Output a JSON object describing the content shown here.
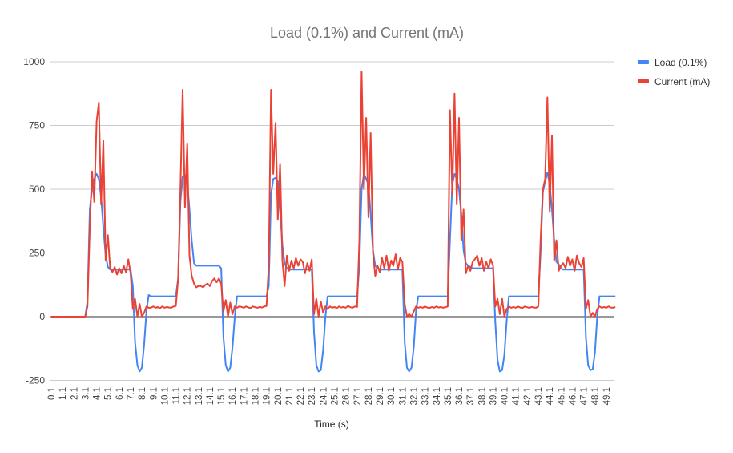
{
  "chart_data": {
    "type": "line",
    "title": "Load (0.1%) and Current (mA)",
    "xlabel": "Time (s)",
    "ylabel": "",
    "ylim": [
      -250,
      1000
    ],
    "yticks": [
      -250,
      0,
      250,
      500,
      750,
      1000
    ],
    "xticks": [
      "0.1",
      "1.1",
      "2.1",
      "3.1",
      "4.1",
      "5.1",
      "6.1",
      "7.1",
      "8.1",
      "9.1",
      "10.1",
      "11.1",
      "12.1",
      "13.1",
      "14.1",
      "15.1",
      "16.1",
      "17.1",
      "18.1",
      "19.1",
      "20.1",
      "21.1",
      "22.1",
      "23.1",
      "24.1",
      "25.1",
      "26.1",
      "27.1",
      "28.1",
      "29.1",
      "30.1",
      "31.1",
      "32.1",
      "33.1",
      "34.1",
      "35.1",
      "36.1",
      "37.1",
      "38.1",
      "39.1",
      "40.1",
      "41.1",
      "42.1",
      "43.1",
      "44.1",
      "45.1",
      "46.1",
      "47.1",
      "48.1",
      "49.1"
    ],
    "x_start": 0.1,
    "x_step": 0.2,
    "grid": true,
    "legend_position": "right",
    "series": [
      {
        "name": "Load (0.1%)",
        "color": "#4285F4",
        "values": [
          0,
          0,
          0,
          0,
          0,
          0,
          0,
          0,
          0,
          0,
          0,
          0,
          0,
          0,
          0,
          0,
          60,
          420,
          500,
          540,
          560,
          540,
          470,
          350,
          240,
          195,
          185,
          185,
          185,
          185,
          185,
          185,
          185,
          185,
          185,
          185,
          120,
          -100,
          -190,
          -215,
          -200,
          -110,
          20,
          85,
          80,
          80,
          80,
          80,
          80,
          80,
          80,
          80,
          80,
          80,
          80,
          80,
          150,
          450,
          550,
          555,
          530,
          420,
          300,
          210,
          200,
          200,
          200,
          200,
          200,
          200,
          200,
          200,
          200,
          200,
          200,
          190,
          -80,
          -190,
          -215,
          -200,
          -120,
          0,
          80,
          80,
          80,
          80,
          80,
          80,
          80,
          80,
          80,
          80,
          80,
          80,
          80,
          80,
          120,
          480,
          540,
          545,
          530,
          420,
          280,
          210,
          190,
          185,
          185,
          185,
          185,
          185,
          185,
          185,
          185,
          185,
          185,
          185,
          -60,
          -190,
          -215,
          -210,
          -130,
          0,
          80,
          80,
          80,
          80,
          80,
          80,
          80,
          80,
          80,
          80,
          80,
          80,
          80,
          80,
          200,
          500,
          560,
          540,
          520,
          400,
          260,
          200,
          190,
          185,
          185,
          185,
          185,
          185,
          185,
          185,
          185,
          185,
          185,
          185,
          -100,
          -200,
          -215,
          -200,
          -120,
          20,
          80,
          80,
          80,
          80,
          80,
          80,
          80,
          80,
          80,
          80,
          80,
          80,
          80,
          80,
          300,
          520,
          560,
          540,
          500,
          400,
          260,
          210,
          200,
          195,
          190,
          190,
          190,
          190,
          190,
          190,
          190,
          190,
          190,
          190,
          -20,
          -170,
          -215,
          -210,
          -150,
          -20,
          80,
          80,
          80,
          80,
          80,
          80,
          80,
          80,
          80,
          80,
          80,
          80,
          80,
          80,
          250,
          490,
          530,
          565,
          520,
          420,
          300,
          215,
          205,
          190,
          185,
          185,
          185,
          185,
          185,
          185,
          185,
          185,
          185,
          185,
          -80,
          -190,
          -210,
          -205,
          -140,
          0,
          80,
          80,
          80,
          80,
          80,
          80,
          80,
          80
        ]
      },
      {
        "name": "Current (mA)",
        "color": "#EA4335",
        "values": [
          0,
          0,
          0,
          0,
          0,
          0,
          0,
          0,
          0,
          0,
          0,
          0,
          0,
          0,
          0,
          0,
          40,
          350,
          570,
          450,
          765,
          840,
          440,
          690,
          220,
          320,
          190,
          175,
          195,
          165,
          190,
          170,
          200,
          175,
          225,
          170,
          30,
          70,
          0,
          50,
          0,
          15,
          40,
          35,
          35,
          40,
          35,
          38,
          33,
          40,
          35,
          38,
          36,
          35,
          40,
          42,
          150,
          500,
          890,
          430,
          680,
          240,
          160,
          130,
          115,
          120,
          120,
          115,
          125,
          130,
          120,
          140,
          150,
          135,
          150,
          130,
          20,
          65,
          0,
          55,
          10,
          40,
          35,
          40,
          38,
          35,
          40,
          36,
          34,
          40,
          37,
          35,
          38,
          36,
          40,
          42,
          200,
          890,
          560,
          760,
          380,
          600,
          220,
          120,
          240,
          180,
          220,
          190,
          230,
          200,
          225,
          215,
          170,
          210,
          180,
          225,
          10,
          70,
          0,
          60,
          15,
          40,
          30,
          40,
          35,
          38,
          33,
          40,
          36,
          38,
          35,
          42,
          37,
          35,
          40,
          38,
          300,
          960,
          500,
          780,
          390,
          720,
          250,
          160,
          200,
          175,
          230,
          190,
          240,
          180,
          220,
          200,
          245,
          185,
          230,
          215,
          50,
          0,
          10,
          0,
          20,
          40,
          35,
          38,
          35,
          40,
          36,
          34,
          38,
          35,
          40,
          36,
          38,
          35,
          37,
          40,
          810,
          480,
          875,
          440,
          780,
          300,
          420,
          170,
          200,
          180,
          215,
          225,
          240,
          200,
          230,
          180,
          215,
          190,
          225,
          200,
          40,
          70,
          10,
          70,
          0,
          30,
          40,
          35,
          38,
          35,
          40,
          36,
          34,
          40,
          37,
          35,
          38,
          36,
          35,
          40,
          300,
          500,
          540,
          860,
          410,
          710,
          220,
          300,
          180,
          200,
          210,
          190,
          235,
          200,
          225,
          180,
          240,
          210,
          195,
          230,
          30,
          65,
          0,
          15,
          0,
          30,
          40,
          35,
          38,
          35,
          40,
          36,
          35,
          38
        ]
      }
    ]
  }
}
